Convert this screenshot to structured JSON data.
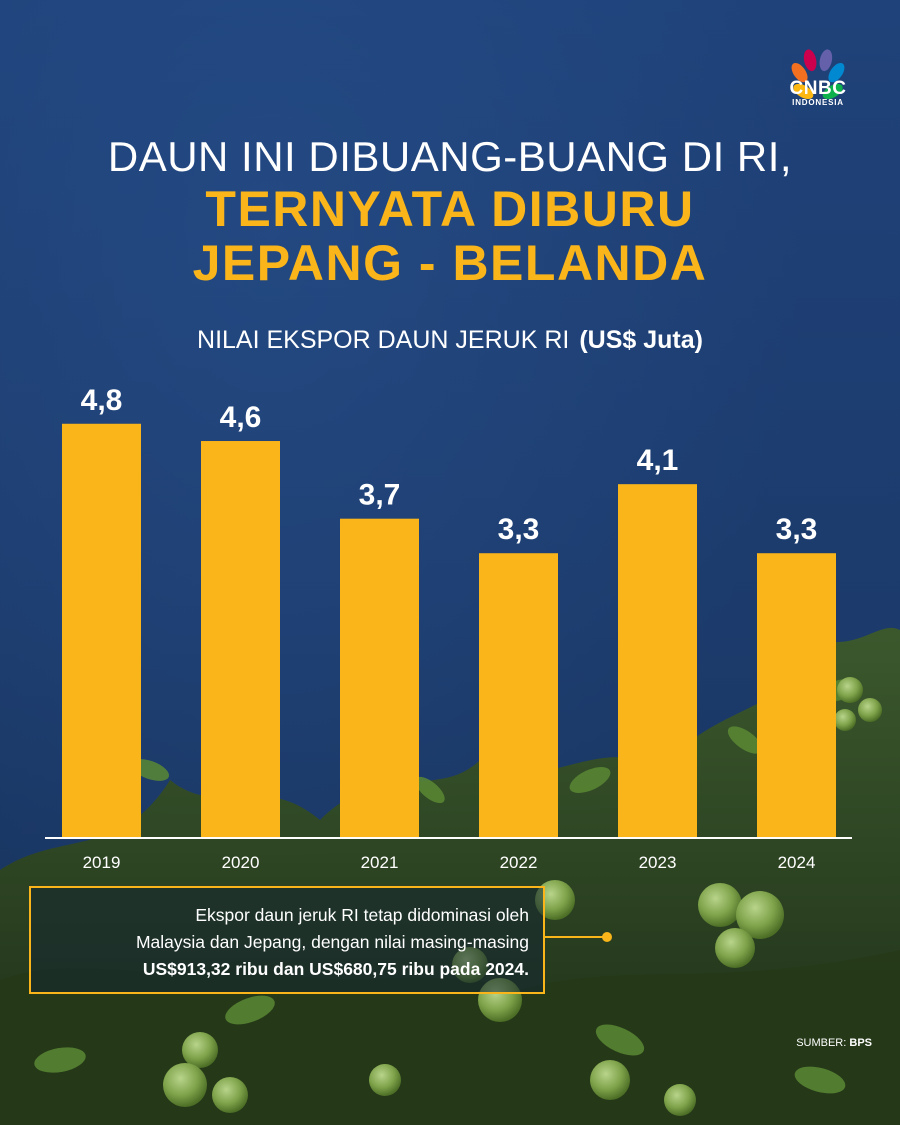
{
  "brand": {
    "logo_text": "CNBC",
    "logo_subtext": "INDONESIA"
  },
  "title": {
    "line1": "DAUN INI DIBUANG-BUANG DI RI,",
    "line2": "TERNYATA DIBURU",
    "line3": "JEPANG - BELANDA"
  },
  "chart_title": {
    "text": "NILAI EKSPOR DAUN JERUK RI",
    "unit": "(US$ Juta)"
  },
  "chart_data": {
    "type": "bar",
    "title": "NILAI EKSPOR DAUN JERUK RI (US$ Juta)",
    "categories": [
      "2019",
      "2020",
      "2021",
      "2022",
      "2023",
      "2024"
    ],
    "values": [
      4.8,
      4.6,
      3.7,
      3.3,
      4.1,
      3.3
    ],
    "value_labels": [
      "4,8",
      "4,6",
      "3,7",
      "3,3",
      "4,1",
      "3,3"
    ],
    "ylim": [
      0,
      5.6
    ],
    "bar_color": "#f9b51a",
    "grid": false
  },
  "note": {
    "line1": "Ekspor daun jeruk RI tetap didominasi oleh",
    "line2": "Malaysia dan Jepang, dengan nilai masing-masing",
    "line3_bold": "US$913,32 ribu dan US$680,75 ribu pada 2024."
  },
  "source": {
    "label": "SUMBER:",
    "value": "BPS"
  },
  "colors": {
    "background": "#1d3d70",
    "accent": "#f9b51a",
    "text": "#ffffff"
  }
}
